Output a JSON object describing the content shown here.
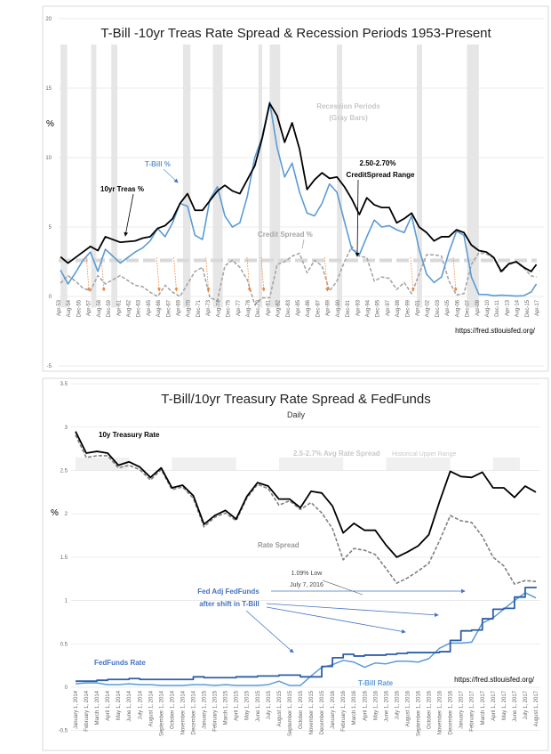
{
  "chart_data": [
    {
      "type": "line",
      "title": "T-Bill -10yr Treas Rate Spread & Recession Periods 1953-Present",
      "ylabel": "%",
      "ylim": [
        -5,
        20
      ],
      "yticks": [
        "-5",
        "0",
        "5",
        "10",
        "15",
        "20"
      ],
      "xlim": [
        1953.25,
        2017.25
      ],
      "xtick_labels": [
        "Apr-53",
        "Aug-54",
        "Dec-55",
        "Apr-57",
        "Aug-58",
        "Dec-59",
        "Apr-61",
        "Aug-62",
        "Dec-63",
        "Apr-65",
        "Aug-66",
        "Dec-67",
        "Apr-69",
        "Aug-70",
        "Dec-71",
        "Apr-73",
        "Aug-74",
        "Dec-75",
        "Apr-77",
        "Aug-78",
        "Dec-79",
        "Apr-81",
        "Aug-82",
        "Dec-83",
        "Apr-85",
        "Aug-86",
        "Dec-87",
        "Apr-89",
        "Aug-90",
        "Dec-91",
        "Apr-93",
        "Aug-94",
        "Dec-95",
        "Apr-97",
        "Aug-98",
        "Dec-99",
        "Apr-01",
        "Aug-02",
        "Dec-03",
        "Apr-05",
        "Aug-06",
        "Dec-07",
        "Apr-09",
        "Aug-10",
        "Dec-11",
        "Apr-13",
        "Aug-14",
        "Dec-15",
        "Apr-17"
      ],
      "grid": true,
      "x": [
        1953,
        1954,
        1955,
        1956,
        1957,
        1958,
        1959,
        1960,
        1961,
        1962,
        1963,
        1964,
        1965,
        1966,
        1967,
        1968,
        1969,
        1970,
        1971,
        1972,
        1973,
        1974,
        1975,
        1976,
        1977,
        1978,
        1979,
        1980,
        1981,
        1982,
        1983,
        1984,
        1985,
        1986,
        1987,
        1988,
        1989,
        1990,
        1991,
        1992,
        1993,
        1994,
        1995,
        1996,
        1997,
        1998,
        1999,
        2000,
        2001,
        2002,
        2003,
        2004,
        2005,
        2006,
        2007,
        2008,
        2009,
        2010,
        2011,
        2012,
        2013,
        2014,
        2015,
        2016,
        2017
      ],
      "series": [
        {
          "name": "10yr Treas %",
          "color": "#000000",
          "values": [
            2.85,
            2.4,
            2.8,
            3.2,
            3.6,
            3.3,
            4.3,
            4.1,
            3.9,
            3.95,
            4.0,
            4.2,
            4.3,
            4.9,
            5.1,
            5.6,
            6.7,
            7.4,
            6.2,
            6.2,
            6.9,
            7.6,
            8.0,
            7.6,
            7.4,
            8.4,
            9.4,
            11.4,
            13.9,
            13.0,
            11.1,
            12.5,
            10.6,
            7.7,
            8.4,
            8.9,
            8.5,
            8.6,
            7.9,
            7.0,
            5.9,
            7.1,
            6.6,
            6.4,
            6.4,
            5.3,
            5.6,
            6.0,
            5.0,
            4.6,
            4.0,
            4.3,
            4.3,
            4.8,
            4.6,
            3.7,
            3.3,
            3.2,
            2.8,
            1.8,
            2.35,
            2.5,
            2.1,
            1.8,
            2.3
          ]
        },
        {
          "name": "T-Bill %",
          "color": "#5b9bd5",
          "values": [
            1.9,
            0.9,
            1.7,
            2.6,
            3.2,
            1.8,
            3.4,
            2.9,
            2.4,
            2.8,
            3.2,
            3.5,
            4.0,
            4.9,
            4.3,
            5.3,
            6.7,
            6.5,
            4.4,
            4.1,
            7.0,
            7.9,
            5.8,
            5.0,
            5.3,
            7.2,
            10.0,
            11.5,
            14.0,
            10.7,
            8.6,
            9.6,
            7.5,
            6.0,
            5.8,
            6.7,
            8.1,
            7.5,
            5.4,
            3.4,
            3.0,
            4.3,
            5.5,
            5.0,
            5.1,
            4.8,
            4.6,
            5.8,
            3.4,
            1.6,
            1.0,
            1.4,
            3.2,
            4.7,
            4.4,
            1.4,
            0.15,
            0.14,
            0.05,
            0.09,
            0.06,
            0.03,
            0.05,
            0.32,
            0.9
          ]
        },
        {
          "name": "Credit Spread %",
          "color": "#a6a6a6",
          "derived": "10yr Treas % minus T-Bill %"
        }
      ],
      "recession_periods": [
        [
          1953.5,
          1954.4
        ],
        [
          1957.6,
          1958.3
        ],
        [
          1960.3,
          1961.1
        ],
        [
          1969.9,
          1970.9
        ],
        [
          1973.9,
          1975.2
        ],
        [
          1980.0,
          1980.5
        ],
        [
          1981.5,
          1982.9
        ],
        [
          1990.5,
          1991.2
        ],
        [
          2001.2,
          2001.9
        ],
        [
          2007.9,
          2009.5
        ]
      ],
      "credit_spread_range": [
        2.5,
        2.7
      ],
      "annotations": {
        "recession_1": "Recession Periods",
        "recession_2": "(Gray Bars)",
        "tbill": "T-Bill %",
        "treas": "10yr Treas %",
        "spread": "Credit Spread %",
        "range_1": "2.50-2.70%",
        "range_2": "CreditSpread Range",
        "source": "https://fred.stlouisfed.org/"
      },
      "colors": {
        "recession_bar": "#e6e6e6",
        "orange_arrow": "#ed7d31"
      }
    },
    {
      "type": "line",
      "title": "T-Bill/10yr Treasury Rate Spread & FedFunds",
      "subtitle": "Daily",
      "ylabel": "%",
      "ylim": [
        -0.5,
        3.5
      ],
      "yticks": [
        "-0.5",
        "0",
        "0.5",
        "1",
        "1.5",
        "2",
        "2.5",
        "3",
        "3.5"
      ],
      "grid": true,
      "categories": [
        "January 1, 2014",
        "February 1, 2014",
        "March 1, 2014",
        "April 1, 2014",
        "May 1, 2014",
        "June 1, 2014",
        "July 1, 2014",
        "August 1, 2014",
        "September 1, 2014",
        "October 1, 2014",
        "November 1, 2014",
        "December 1, 2014",
        "January 1, 2015",
        "February 1, 2015",
        "March 1, 2015",
        "April 1, 2015",
        "May 1, 2015",
        "June 1, 2015",
        "July 1, 2015",
        "August 1, 2015",
        "September 1, 2015",
        "October 1, 2015",
        "November 1, 2015",
        "December 1, 2015",
        "January 1, 2016",
        "February 1, 2016",
        "March 1, 2016",
        "April 1, 2016",
        "May 1, 2016",
        "June 1, 2016",
        "July 1, 2016",
        "August 1, 2016",
        "September 1, 2016",
        "October 1, 2016",
        "November 1, 2016",
        "December 1, 2016",
        "January 1, 2017",
        "February 1, 2017",
        "March 1, 2017",
        "April 1, 2017",
        "May 1, 2017",
        "June 1, 2017",
        "July 1, 2017",
        "August 1, 2017"
      ],
      "series": [
        {
          "name": "10y Treasury Rate",
          "color": "#000000",
          "values": [
            2.95,
            2.7,
            2.72,
            2.7,
            2.56,
            2.6,
            2.54,
            2.42,
            2.53,
            2.3,
            2.33,
            2.21,
            1.88,
            1.98,
            2.04,
            1.94,
            2.2,
            2.36,
            2.32,
            2.17,
            2.17,
            2.07,
            2.26,
            2.24,
            2.09,
            1.78,
            1.89,
            1.81,
            1.81,
            1.64,
            1.5,
            1.56,
            1.63,
            1.76,
            2.14,
            2.49,
            2.43,
            2.42,
            2.48,
            2.3,
            2.3,
            2.19,
            2.32,
            2.25
          ]
        },
        {
          "name": "T-Bill Rate",
          "color": "#5b9bd5",
          "values": [
            0.04,
            0.05,
            0.05,
            0.03,
            0.03,
            0.04,
            0.03,
            0.03,
            0.02,
            0.02,
            0.02,
            0.03,
            0.03,
            0.02,
            0.03,
            0.02,
            0.02,
            0.02,
            0.03,
            0.07,
            0.02,
            0.02,
            0.13,
            0.23,
            0.26,
            0.31,
            0.29,
            0.23,
            0.28,
            0.27,
            0.3,
            0.3,
            0.29,
            0.33,
            0.45,
            0.51,
            0.51,
            0.52,
            0.74,
            0.8,
            0.9,
            1.0,
            1.09,
            1.03
          ]
        },
        {
          "name": "FedFunds Rate",
          "color": "#2e5fa8",
          "values": [
            0.07,
            0.07,
            0.08,
            0.09,
            0.09,
            0.1,
            0.09,
            0.09,
            0.09,
            0.09,
            0.09,
            0.12,
            0.11,
            0.11,
            0.11,
            0.12,
            0.12,
            0.13,
            0.13,
            0.14,
            0.14,
            0.12,
            0.12,
            0.24,
            0.34,
            0.38,
            0.36,
            0.37,
            0.37,
            0.38,
            0.39,
            0.4,
            0.4,
            0.4,
            0.41,
            0.54,
            0.65,
            0.66,
            0.79,
            0.9,
            0.91,
            1.04,
            1.15,
            1.16
          ]
        },
        {
          "name": "Rate Spread",
          "color": "#808080",
          "derived": "10y Treasury Rate minus T-Bill Rate"
        }
      ],
      "upper_range_band": [
        2.5,
        2.65
      ],
      "upper_range_months": [
        [
          0,
          5
        ],
        [
          9,
          15
        ],
        [
          19,
          25
        ],
        [
          29,
          35
        ],
        [
          39,
          41.5
        ]
      ],
      "annotations": {
        "treas": "10y Treasury Rate",
        "range_a": "2.5-2.7% Avg Rate Spread",
        "range_b": "Historical Upper Range",
        "spread": "Rate Spread",
        "low_1": "1.09% Low",
        "low_2": "July 7, 2016",
        "fed_1": "Fed Adj FedFunds",
        "fed_2": "after shift in T-Bill",
        "fedfunds": "FedFunds Rate",
        "tbill": "T-Bill Rate",
        "source": "https://fred.stlouisfed.org/"
      }
    }
  ]
}
